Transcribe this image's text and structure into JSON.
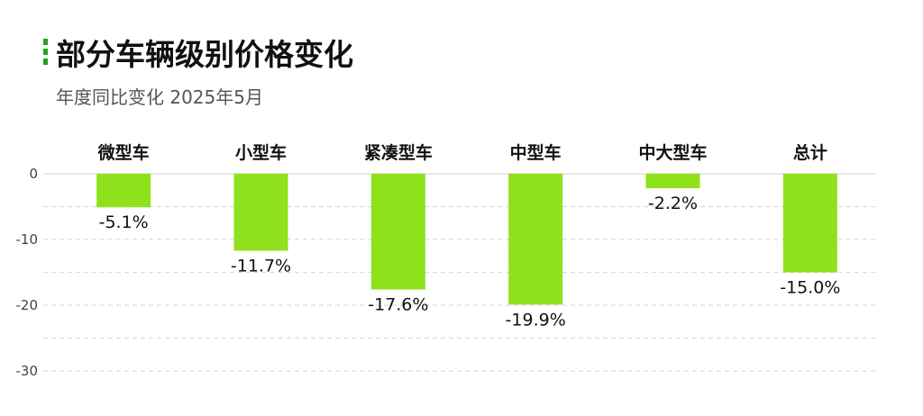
{
  "title": "部分车辆级别价格变化",
  "subtitle": "年度同比变化 2025年5月",
  "colors": {
    "bar": "#8fe11b",
    "accent": "#1fa51f",
    "grid": "#d9d9d9"
  },
  "chart_data": {
    "type": "bar",
    "categories": [
      "微型车",
      "小型车",
      "紧凑型车",
      "中型车",
      "中大型车",
      "总计"
    ],
    "values": [
      -5.1,
      -11.7,
      -17.6,
      -19.9,
      -2.2,
      -15.0
    ],
    "data_labels": [
      "-5.1%",
      "-11.7%",
      "-17.6%",
      "-19.9%",
      "-2.2%",
      "-15.0%"
    ],
    "title": "部分车辆级别价格变化",
    "subtitle": "年度同比变化 2025年5月",
    "ylim": [
      -30,
      0
    ],
    "yticks": [
      0,
      -10,
      -20,
      -30
    ],
    "ytick_labels": [
      "0",
      "-10",
      "-20",
      "-30"
    ],
    "grid": true,
    "category_axis_position": "top"
  }
}
